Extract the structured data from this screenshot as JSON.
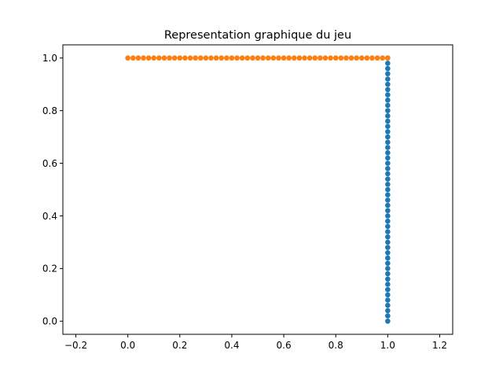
{
  "chart_data": {
    "type": "scatter",
    "title": "Representation graphique du jeu",
    "xlabel": "",
    "ylabel": "",
    "xlim": [
      -0.25,
      1.25
    ],
    "ylim": [
      -0.05,
      1.05
    ],
    "x_ticks": [
      "−0.2",
      "0.0",
      "0.2",
      "0.4",
      "0.6",
      "0.8",
      "1.0",
      "1.2"
    ],
    "x_tick_values": [
      -0.2,
      0.0,
      0.2,
      0.4,
      0.6,
      0.8,
      1.0,
      1.2
    ],
    "y_ticks": [
      "0.0",
      "0.2",
      "0.4",
      "0.6",
      "0.8",
      "1.0"
    ],
    "y_tick_values": [
      0.0,
      0.2,
      0.4,
      0.6,
      0.8,
      1.0
    ],
    "grid": false,
    "legend": "none",
    "series": [
      {
        "color": "#1f77b4",
        "x": [
          1.0,
          1.0,
          1.0,
          1.0,
          1.0,
          1.0,
          1.0,
          1.0,
          1.0,
          1.0,
          1.0,
          1.0,
          1.0,
          1.0,
          1.0,
          1.0,
          1.0,
          1.0,
          1.0,
          1.0,
          1.0,
          1.0,
          1.0,
          1.0,
          1.0,
          1.0,
          1.0,
          1.0,
          1.0,
          1.0,
          1.0,
          1.0,
          1.0,
          1.0,
          1.0,
          1.0,
          1.0,
          1.0,
          1.0,
          1.0,
          1.0,
          1.0,
          1.0,
          1.0,
          1.0,
          1.0,
          1.0,
          1.0,
          1.0,
          1.0,
          1.0
        ],
        "y": [
          0.0,
          0.02,
          0.04,
          0.06,
          0.08,
          0.1,
          0.12,
          0.14,
          0.16,
          0.18,
          0.2,
          0.22,
          0.24,
          0.26,
          0.28,
          0.3,
          0.32,
          0.34,
          0.36,
          0.38,
          0.4,
          0.42,
          0.44,
          0.46,
          0.48,
          0.5,
          0.52,
          0.54,
          0.56,
          0.58,
          0.6,
          0.62,
          0.64,
          0.66,
          0.68,
          0.7,
          0.72,
          0.74,
          0.76,
          0.78,
          0.8,
          0.82,
          0.84,
          0.86,
          0.88,
          0.9,
          0.92,
          0.94,
          0.96,
          0.98,
          1.0
        ]
      },
      {
        "color": "#ff7f0e",
        "x": [
          0.0,
          0.02,
          0.04,
          0.06,
          0.08,
          0.1,
          0.12,
          0.14,
          0.16,
          0.18,
          0.2,
          0.22,
          0.24,
          0.26,
          0.28,
          0.3,
          0.32,
          0.34,
          0.36,
          0.38,
          0.4,
          0.42,
          0.44,
          0.46,
          0.48,
          0.5,
          0.52,
          0.54,
          0.56,
          0.58,
          0.6,
          0.62,
          0.64,
          0.66,
          0.68,
          0.7,
          0.72,
          0.74,
          0.76,
          0.78,
          0.8,
          0.82,
          0.84,
          0.86,
          0.88,
          0.9,
          0.92,
          0.94,
          0.96,
          0.98,
          1.0
        ],
        "y": [
          1.0,
          1.0,
          1.0,
          1.0,
          1.0,
          1.0,
          1.0,
          1.0,
          1.0,
          1.0,
          1.0,
          1.0,
          1.0,
          1.0,
          1.0,
          1.0,
          1.0,
          1.0,
          1.0,
          1.0,
          1.0,
          1.0,
          1.0,
          1.0,
          1.0,
          1.0,
          1.0,
          1.0,
          1.0,
          1.0,
          1.0,
          1.0,
          1.0,
          1.0,
          1.0,
          1.0,
          1.0,
          1.0,
          1.0,
          1.0,
          1.0,
          1.0,
          1.0,
          1.0,
          1.0,
          1.0,
          1.0,
          1.0,
          1.0,
          1.0,
          1.0
        ]
      }
    ]
  }
}
